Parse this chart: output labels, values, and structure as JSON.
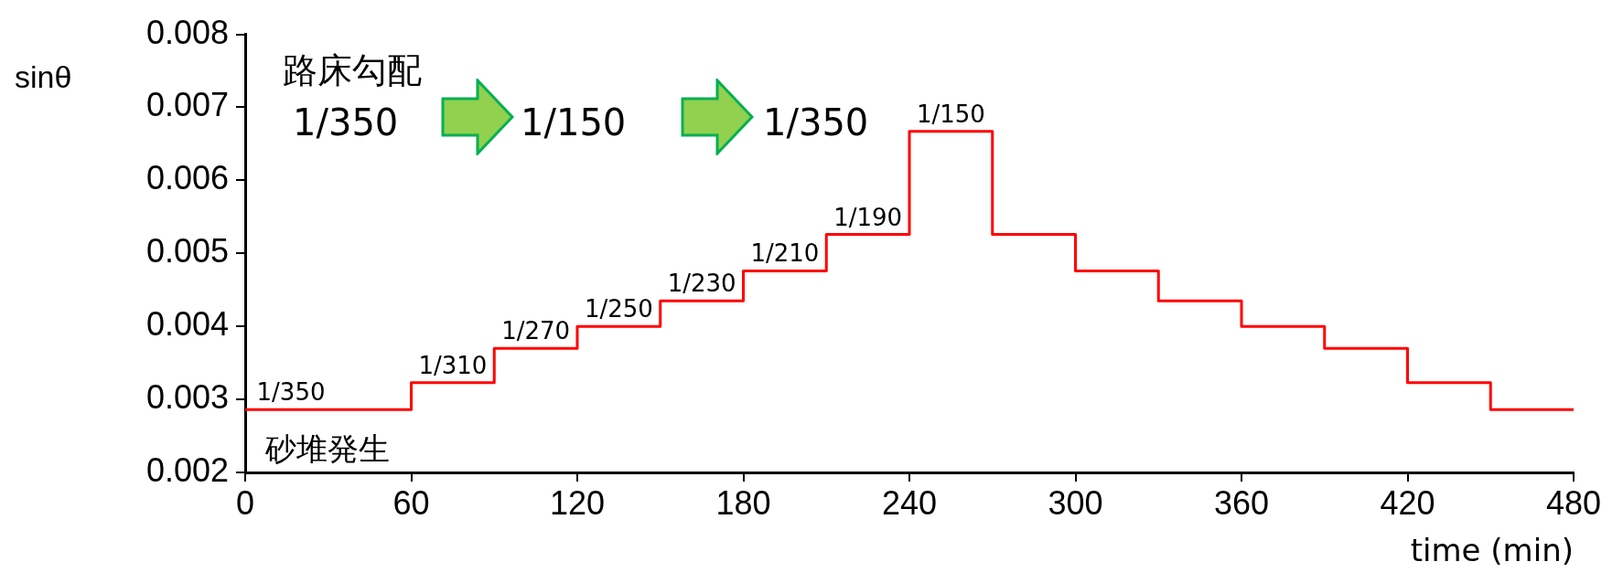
{
  "chart_data": {
    "type": "step",
    "xlabel": "time (min)",
    "ylabel": "sinθ",
    "x": [
      0,
      60,
      90,
      120,
      150,
      180,
      210,
      240,
      270,
      300,
      330,
      360,
      390,
      420,
      450,
      480
    ],
    "series": [
      {
        "color": "#ff0000",
        "values": [
          0.00286,
          0.00323,
          0.0037,
          0.004,
          0.00435,
          0.00476,
          0.00526,
          0.00667,
          0.00526,
          0.00476,
          0.00435,
          0.004,
          0.0037,
          0.00323,
          0.00286,
          0.00286
        ],
        "value_labels": [
          "1/350",
          "1/310",
          "1/270",
          "1/250",
          "1/230",
          "1/210",
          "1/190",
          "1/150",
          null,
          null,
          null,
          null,
          null,
          null,
          null,
          null
        ]
      }
    ],
    "xlim": [
      0,
      480
    ],
    "xticks": [
      0,
      60,
      120,
      180,
      240,
      300,
      360,
      420,
      480
    ],
    "ylim": [
      0.002,
      0.008
    ],
    "yticks": [
      0.002,
      0.003,
      0.004,
      0.005,
      0.006,
      0.007,
      0.008
    ],
    "grid": false,
    "legend": false,
    "marker": "none",
    "line_style": "solid",
    "annotations": [
      "路床勾配",
      "1/350",
      "1/150",
      "1/350",
      "砂堆発生"
    ]
  }
}
